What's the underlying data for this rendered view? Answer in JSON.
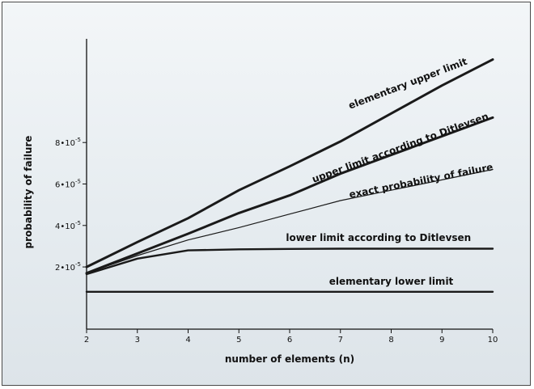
{
  "chart_data": {
    "type": "line",
    "xlabel": "number of elements (n)",
    "ylabel": "probability of failure",
    "xlim": [
      2,
      10
    ],
    "ylim": [
      -1e-05,
      0.00013
    ],
    "x_ticks": [
      2,
      3,
      4,
      5,
      6,
      7,
      8,
      9,
      10
    ],
    "y_ticks": [
      {
        "value": 2e-05,
        "mantissa": "2",
        "exponent": "-5"
      },
      {
        "value": 4e-05,
        "mantissa": "4",
        "exponent": "-5"
      },
      {
        "value": 6e-05,
        "mantissa": "6",
        "exponent": "-5"
      },
      {
        "value": 8e-05,
        "mantissa": "8",
        "exponent": "-5"
      }
    ],
    "series": [
      {
        "name": "elementary upper limit",
        "x": [
          2,
          3,
          4,
          5,
          6,
          7,
          8,
          9,
          10
        ],
        "values": [
          2e-05,
          3.2e-05,
          4.35e-05,
          5.7e-05,
          6.85e-05,
          8.05e-05,
          9.4e-05,
          0.0001075,
          0.00012
        ],
        "stroke_width": 3,
        "label_x": 8.35,
        "label_y": 0.000107,
        "label_rotate": -21
      },
      {
        "name": "upper limit according to Ditlevsen",
        "x": [
          2,
          3,
          4,
          5,
          6,
          7,
          8,
          9,
          10
        ],
        "values": [
          1.7e-05,
          2.65e-05,
          3.6e-05,
          4.6e-05,
          5.45e-05,
          6.5e-05,
          7.4e-05,
          8.3e-05,
          9.2e-05
        ],
        "stroke_width": 3,
        "label_x": 8.2,
        "label_y": 7.6e-05,
        "label_rotate": -20
      },
      {
        "name": "exact probability of failure",
        "x": [
          2,
          3,
          4,
          5,
          6,
          7,
          8,
          9,
          10
        ],
        "values": [
          1.7e-05,
          2.55e-05,
          3.3e-05,
          3.9e-05,
          4.55e-05,
          5.2e-05,
          5.7e-05,
          6.2e-05,
          6.7e-05
        ],
        "stroke_width": 1.2,
        "label_x": 8.6,
        "label_y": 6e-05,
        "label_rotate": -11
      },
      {
        "name": "lower limit according to Ditlevsen",
        "x": [
          2,
          3,
          4,
          5,
          6,
          7,
          8,
          9,
          10
        ],
        "values": [
          1.65e-05,
          2.4e-05,
          2.8e-05,
          2.85e-05,
          2.87e-05,
          2.88e-05,
          2.88e-05,
          2.88e-05,
          2.88e-05
        ],
        "stroke_width": 2.4,
        "label_x": 7.75,
        "label_y": 3.25e-05,
        "label_rotate": 0
      },
      {
        "name": "elementary lower limit",
        "x": [
          2,
          3,
          4,
          5,
          6,
          7,
          8,
          9,
          10
        ],
        "values": [
          8e-06,
          8e-06,
          8e-06,
          8e-06,
          8e-06,
          8e-06,
          8e-06,
          8e-06,
          8e-06
        ],
        "stroke_width": 2.4,
        "label_x": 8.0,
        "label_y": 1.15e-05,
        "label_rotate": 0
      }
    ],
    "grid": false,
    "legend": "none (labels placed next to lines)",
    "colors": {
      "line": "#1a1a1a",
      "background": "#e8eef2",
      "border": "#4a4a4a"
    }
  }
}
